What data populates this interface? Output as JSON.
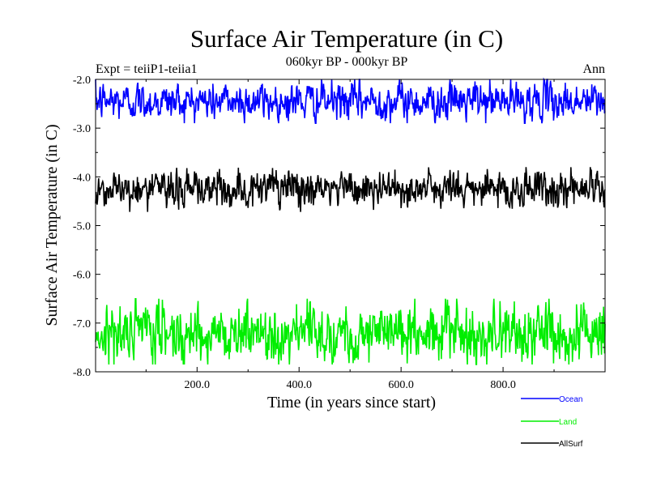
{
  "chart_data": {
    "type": "line",
    "title": "Surface Air Temperature (in C)",
    "subtitle": "060kyr BP - 000kyr BP",
    "left_label": "Expt = teiiP1-teiia1",
    "right_label": "Ann",
    "xlabel": "Time (in years since start)",
    "ylabel": "Surface Air Temperature (in C)",
    "xlim": [
      1,
      1000
    ],
    "ylim": [
      -8.0,
      -2.0
    ],
    "x_ticks": [
      200,
      400,
      600,
      800
    ],
    "x_tick_labels": [
      "200.0",
      "400.0",
      "600.0",
      "800.0"
    ],
    "y_ticks": [
      -2.0,
      -3.0,
      -4.0,
      -5.0,
      -6.0,
      -7.0,
      -8.0
    ],
    "y_tick_labels": [
      "-2.0",
      "-3.0",
      "-4.0",
      "-5.0",
      "-6.0",
      "-7.0",
      "-8.0"
    ],
    "grid": false,
    "legend_position": "bottom-right",
    "series": [
      {
        "name": "Ocean",
        "color": "#0000ff",
        "mean": -2.45,
        "spread": 0.18,
        "min": -2.9,
        "max": -2.0
      },
      {
        "name": "Land",
        "color": "#00ee00",
        "mean": -7.2,
        "spread": 0.28,
        "min": -7.85,
        "max": -6.5
      },
      {
        "name": "AllSurf",
        "color": "#000000",
        "mean": -4.25,
        "spread": 0.18,
        "min": -4.72,
        "max": -3.8
      }
    ]
  }
}
